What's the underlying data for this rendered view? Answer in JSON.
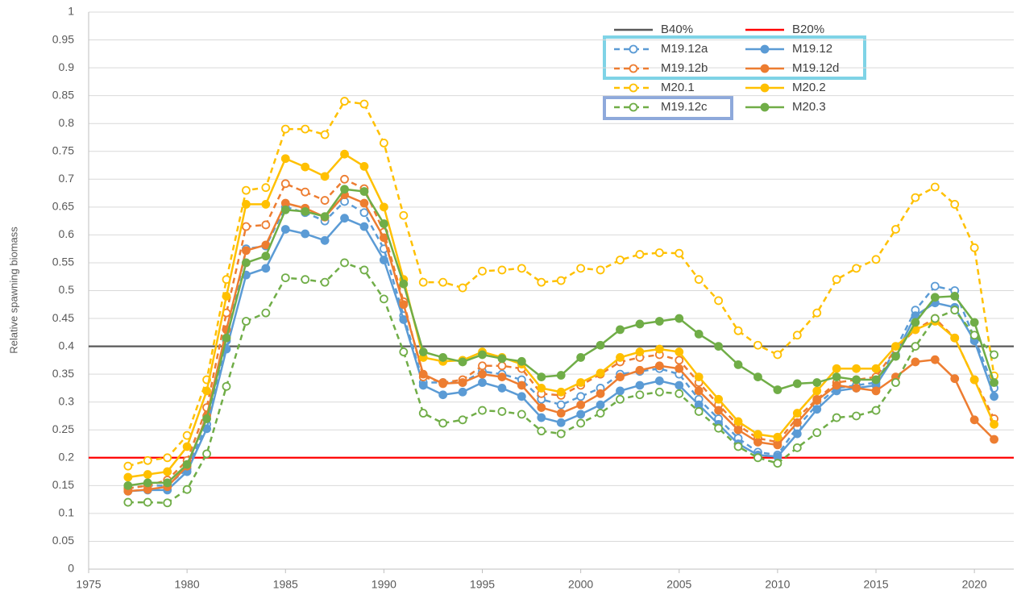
{
  "chart_data": {
    "type": "line",
    "y_label": "Relative spawning biomass",
    "xlim": [
      1975,
      2022
    ],
    "xticks": [
      1975,
      1980,
      1985,
      1990,
      1995,
      2000,
      2005,
      2010,
      2015,
      2020
    ],
    "ylim": [
      0,
      1
    ],
    "yticks": [
      0,
      0.05,
      0.1,
      0.15,
      0.2,
      0.25,
      0.3,
      0.35,
      0.4,
      0.45,
      0.5,
      0.55,
      0.6,
      0.65,
      0.7,
      0.75,
      0.8,
      0.85,
      0.9,
      0.95,
      1
    ],
    "grid": true,
    "reference_lines": [
      {
        "name": "B40%",
        "value": 0.4,
        "color": "#595959"
      },
      {
        "name": "B20%",
        "value": 0.2,
        "color": "#ff0000"
      }
    ],
    "x": [
      1977,
      1978,
      1979,
      1980,
      1981,
      1982,
      1983,
      1984,
      1985,
      1986,
      1987,
      1988,
      1989,
      1990,
      1991,
      1992,
      1993,
      1994,
      1995,
      1996,
      1997,
      1998,
      1999,
      2000,
      2001,
      2002,
      2003,
      2004,
      2005,
      2006,
      2007,
      2008,
      2009,
      2010,
      2011,
      2012,
      2013,
      2014,
      2015,
      2016,
      2017,
      2018,
      2019,
      2020,
      2021
    ],
    "series": [
      {
        "name": "M19.12a",
        "color": "#5b9bd5",
        "dashed": true,
        "values": [
          0.145,
          0.15,
          0.15,
          0.18,
          0.26,
          0.41,
          0.575,
          0.58,
          0.65,
          0.64,
          0.625,
          0.66,
          0.64,
          0.575,
          0.455,
          0.335,
          0.335,
          0.335,
          0.355,
          0.35,
          0.34,
          0.305,
          0.295,
          0.31,
          0.325,
          0.35,
          0.355,
          0.36,
          0.35,
          0.305,
          0.27,
          0.235,
          0.21,
          0.205,
          0.255,
          0.295,
          0.325,
          0.33,
          0.335,
          0.395,
          0.465,
          0.508,
          0.5,
          0.415,
          0.325
        ]
      },
      {
        "name": "M19.12",
        "color": "#5b9bd5",
        "dashed": false,
        "values": [
          0.14,
          0.142,
          0.142,
          0.175,
          0.252,
          0.395,
          0.528,
          0.54,
          0.61,
          0.602,
          0.59,
          0.63,
          0.615,
          0.555,
          0.448,
          0.33,
          0.313,
          0.318,
          0.335,
          0.325,
          0.31,
          0.272,
          0.263,
          0.278,
          0.295,
          0.32,
          0.33,
          0.338,
          0.33,
          0.295,
          0.26,
          0.225,
          0.205,
          0.202,
          0.243,
          0.287,
          0.32,
          0.325,
          0.33,
          0.385,
          0.455,
          0.478,
          0.47,
          0.41,
          0.31
        ]
      },
      {
        "name": "M19.12b",
        "color": "#ed7d31",
        "dashed": true,
        "values": [
          0.145,
          0.15,
          0.16,
          0.195,
          0.29,
          0.46,
          0.615,
          0.618,
          0.692,
          0.677,
          0.662,
          0.7,
          0.683,
          0.605,
          0.48,
          0.345,
          0.335,
          0.34,
          0.365,
          0.365,
          0.36,
          0.315,
          0.312,
          0.33,
          0.35,
          0.372,
          0.38,
          0.385,
          0.375,
          0.335,
          0.295,
          0.258,
          0.235,
          0.228,
          0.272,
          0.305,
          0.335,
          0.34,
          0.345,
          0.395,
          0.43,
          0.45,
          0.415,
          0.34,
          0.27
        ]
      },
      {
        "name": "M19.12d",
        "color": "#ed7d31",
        "dashed": false,
        "values": [
          0.14,
          0.143,
          0.148,
          0.185,
          0.275,
          0.43,
          0.572,
          0.582,
          0.657,
          0.648,
          0.632,
          0.672,
          0.657,
          0.595,
          0.475,
          0.35,
          0.333,
          0.335,
          0.35,
          0.345,
          0.33,
          0.29,
          0.28,
          0.295,
          0.315,
          0.345,
          0.357,
          0.365,
          0.36,
          0.32,
          0.285,
          0.25,
          0.228,
          0.223,
          0.263,
          0.303,
          0.33,
          0.325,
          0.32,
          0.345,
          0.372,
          0.376,
          0.342,
          0.268,
          0.233
        ]
      },
      {
        "name": "M20.1",
        "color": "#ffc000",
        "dashed": true,
        "values": [
          0.185,
          0.195,
          0.2,
          0.24,
          0.34,
          0.52,
          0.68,
          0.685,
          0.79,
          0.79,
          0.78,
          0.84,
          0.835,
          0.765,
          0.635,
          0.515,
          0.515,
          0.505,
          0.535,
          0.537,
          0.54,
          0.515,
          0.518,
          0.54,
          0.537,
          0.555,
          0.565,
          0.568,
          0.567,
          0.52,
          0.482,
          0.428,
          0.402,
          0.385,
          0.42,
          0.46,
          0.52,
          0.54,
          0.556,
          0.61,
          0.667,
          0.686,
          0.655,
          0.577,
          0.347
        ]
      },
      {
        "name": "M20.2",
        "color": "#ffc000",
        "dashed": false,
        "values": [
          0.165,
          0.17,
          0.175,
          0.22,
          0.32,
          0.49,
          0.655,
          0.655,
          0.737,
          0.722,
          0.705,
          0.745,
          0.723,
          0.65,
          0.52,
          0.38,
          0.373,
          0.375,
          0.39,
          0.38,
          0.368,
          0.325,
          0.318,
          0.335,
          0.352,
          0.38,
          0.39,
          0.395,
          0.39,
          0.345,
          0.305,
          0.265,
          0.242,
          0.237,
          0.28,
          0.32,
          0.36,
          0.36,
          0.36,
          0.4,
          0.43,
          0.445,
          0.415,
          0.34,
          0.26
        ]
      },
      {
        "name": "M19.12c",
        "color": "#70ad47",
        "dashed": true,
        "values": [
          0.12,
          0.12,
          0.119,
          0.143,
          0.207,
          0.328,
          0.445,
          0.46,
          0.523,
          0.52,
          0.515,
          0.55,
          0.537,
          0.485,
          0.39,
          0.28,
          0.262,
          0.268,
          0.285,
          0.283,
          0.278,
          0.248,
          0.243,
          0.262,
          0.28,
          0.305,
          0.313,
          0.318,
          0.315,
          0.283,
          0.253,
          0.22,
          0.2,
          0.19,
          0.218,
          0.245,
          0.272,
          0.275,
          0.285,
          0.335,
          0.4,
          0.45,
          0.465,
          0.42,
          0.385
        ]
      },
      {
        "name": "M20.3",
        "color": "#70ad47",
        "dashed": false,
        "values": [
          0.15,
          0.155,
          0.155,
          0.188,
          0.27,
          0.415,
          0.55,
          0.562,
          0.645,
          0.642,
          0.633,
          0.682,
          0.678,
          0.62,
          0.512,
          0.39,
          0.38,
          0.372,
          0.385,
          0.378,
          0.373,
          0.345,
          0.348,
          0.38,
          0.402,
          0.43,
          0.44,
          0.445,
          0.45,
          0.422,
          0.4,
          0.367,
          0.345,
          0.322,
          0.333,
          0.335,
          0.345,
          0.34,
          0.34,
          0.382,
          0.443,
          0.488,
          0.49,
          0.443,
          0.335
        ]
      }
    ]
  }
}
